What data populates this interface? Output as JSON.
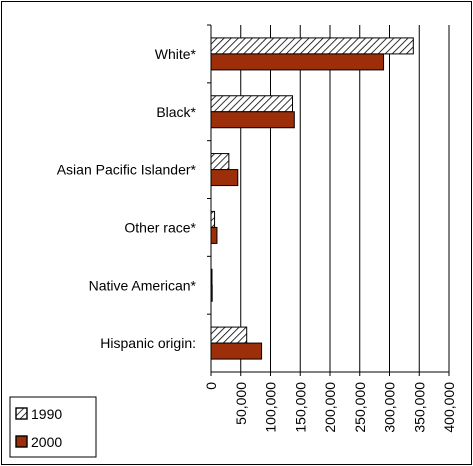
{
  "chart_data": {
    "type": "bar",
    "orientation": "horizontal",
    "categories": [
      "White*",
      "Black*",
      "Asian Pacific Islander*",
      "Other race*",
      "Native American*",
      "Hispanic origin:"
    ],
    "series": [
      {
        "name": "1990",
        "values": [
          340000,
          137000,
          30000,
          6000,
          1500,
          60000
        ],
        "color": "#ffffff",
        "pattern": "diagonal-hatch"
      },
      {
        "name": "2000",
        "values": [
          290000,
          140000,
          45000,
          10000,
          2000,
          85000
        ],
        "color": "#9c2f0a",
        "pattern": "solid"
      }
    ],
    "title": "",
    "xlabel": "",
    "ylabel": "",
    "xlim": [
      0,
      400000
    ],
    "xticks": [
      0,
      50000,
      100000,
      150000,
      200000,
      250000,
      300000,
      350000,
      400000
    ],
    "xtick_labels": [
      "0",
      "50,000",
      "100,000",
      "150,000",
      "200,000",
      "250,000",
      "300,000",
      "350,000",
      "400,000"
    ],
    "grid": "vertical gridlines",
    "legend_position": "bottom-left"
  }
}
